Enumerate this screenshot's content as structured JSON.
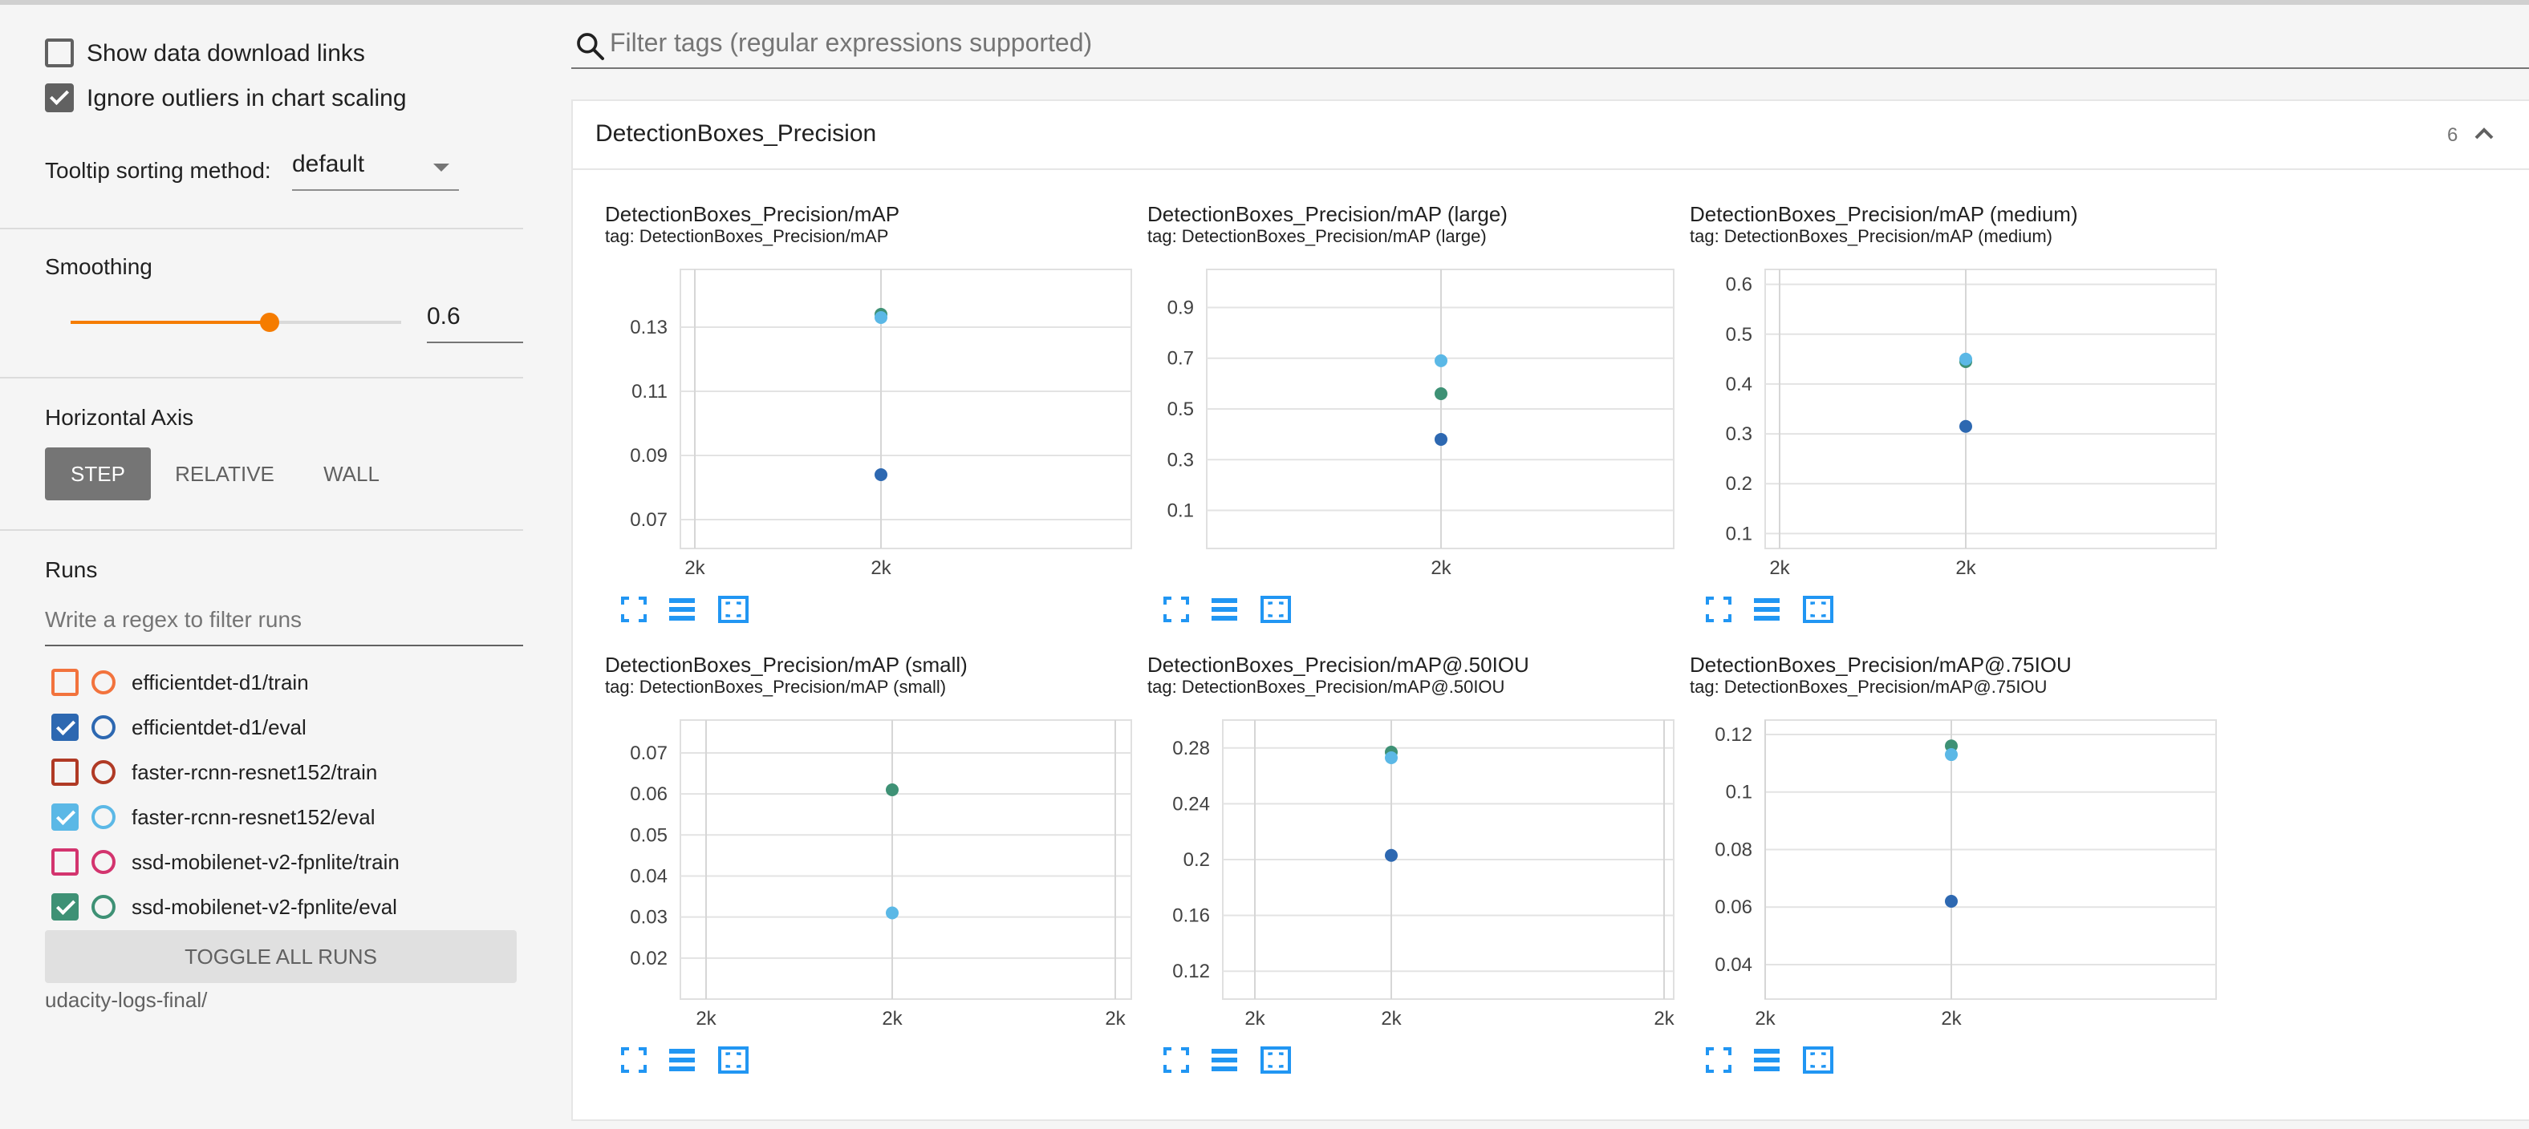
{
  "sidebar": {
    "show_download_label": "Show data download links",
    "ignore_outliers_label": "Ignore outliers in chart scaling",
    "tooltip_label": "Tooltip sorting method:",
    "tooltip_value": "default",
    "smoothing_label": "Smoothing",
    "smoothing_value": "0.6",
    "smoothing_fraction": 0.6,
    "horizontal_axis_label": "Horizontal Axis",
    "axis_buttons": [
      "STEP",
      "RELATIVE",
      "WALL"
    ],
    "runs_label": "Runs",
    "runs_filter_placeholder": "Write a regex to filter runs",
    "runs": [
      {
        "name": "efficientdet-d1/train",
        "checked": false,
        "color": "#f2733d"
      },
      {
        "name": "efficientdet-d1/eval",
        "checked": true,
        "color": "#2d68b1"
      },
      {
        "name": "faster-rcnn-resnet152/train",
        "checked": false,
        "color": "#b03a25"
      },
      {
        "name": "faster-rcnn-resnet152/eval",
        "checked": true,
        "color": "#5bb8e6"
      },
      {
        "name": "ssd-mobilenet-v2-fpnlite/train",
        "checked": false,
        "color": "#d3346e"
      },
      {
        "name": "ssd-mobilenet-v2-fpnlite/eval",
        "checked": true,
        "color": "#3e9175"
      }
    ],
    "toggle_all_label": "TOGGLE ALL RUNS",
    "logdir": "udacity-logs-final/"
  },
  "search": {
    "placeholder": "Filter tags (regular expressions supported)"
  },
  "panel": {
    "title": "DetectionBoxes_Precision",
    "count": "6"
  },
  "colors": {
    "run_eval_d1": "#2d68b1",
    "run_eval_rcnn": "#5bb8e6",
    "run_eval_ssd": "#3e9175",
    "accent": "#f57c00",
    "tool_blue": "#2196f3"
  },
  "chart_data": [
    {
      "type": "scatter",
      "title": "DetectionBoxes_Precision/mAP",
      "tag": "tag: DetectionBoxes_Precision/mAP",
      "yticks": [
        0.07,
        0.09,
        0.11,
        0.13
      ],
      "ylim": [
        0.061,
        0.148
      ],
      "xticks": [
        "2k",
        "2k"
      ],
      "series": [
        {
          "values": [
            0.134
          ]
        },
        {
          "values": [
            0.133
          ]
        },
        {
          "values": [
            0.084
          ]
        }
      ]
    },
    {
      "type": "scatter",
      "title": "DetectionBoxes_Precision/mAP (large)",
      "tag": "tag: DetectionBoxes_Precision/mAP (large)",
      "yticks": [
        0.1,
        0.3,
        0.5,
        0.7,
        0.9
      ],
      "ylim": [
        -0.05,
        1.05
      ],
      "xticks": [
        "2k"
      ],
      "series": [
        {
          "values": [
            0.56
          ]
        },
        {
          "values": [
            0.69
          ]
        },
        {
          "values": [
            0.38
          ]
        }
      ]
    },
    {
      "type": "scatter",
      "title": "DetectionBoxes_Precision/mAP (medium)",
      "tag": "tag: DetectionBoxes_Precision/mAP (medium)",
      "yticks": [
        0.1,
        0.2,
        0.3,
        0.4,
        0.5,
        0.6
      ],
      "ylim": [
        0.07,
        0.63
      ],
      "xticks": [
        "2k",
        "2k"
      ],
      "series": [
        {
          "values": [
            0.445
          ]
        },
        {
          "values": [
            0.45
          ]
        },
        {
          "values": [
            0.315
          ]
        }
      ]
    },
    {
      "type": "scatter",
      "title": "DetectionBoxes_Precision/mAP (small)",
      "tag": "tag: DetectionBoxes_Precision/mAP (small)",
      "yticks": [
        0.02,
        0.03,
        0.04,
        0.05,
        0.06,
        0.07
      ],
      "ylim": [
        0.01,
        0.078
      ],
      "xticks": [
        "2k",
        "2k",
        "2k"
      ],
      "series": [
        {
          "values": [
            0.061
          ]
        },
        {
          "values": [
            0.031
          ]
        }
      ]
    },
    {
      "type": "scatter",
      "title": "DetectionBoxes_Precision/mAP@.50IOU",
      "tag": "tag: DetectionBoxes_Precision/mAP@.50IOU",
      "yticks": [
        0.12,
        0.16,
        0.2,
        0.24,
        0.28
      ],
      "ylim": [
        0.1,
        0.3
      ],
      "xticks": [
        "2k",
        "2k",
        "2k"
      ],
      "series": [
        {
          "values": [
            0.277
          ]
        },
        {
          "values": [
            0.273
          ]
        },
        {
          "values": [
            0.203
          ]
        }
      ]
    },
    {
      "type": "scatter",
      "title": "DetectionBoxes_Precision/mAP@.75IOU",
      "tag": "tag: DetectionBoxes_Precision/mAP@.75IOU",
      "yticks": [
        0.04,
        0.06,
        0.08,
        0.1,
        0.12
      ],
      "ylim": [
        0.028,
        0.125
      ],
      "xticks": [
        "2k",
        "2k"
      ],
      "series": [
        {
          "values": [
            0.116
          ]
        },
        {
          "values": [
            0.113
          ]
        },
        {
          "values": [
            0.062
          ]
        }
      ]
    }
  ]
}
